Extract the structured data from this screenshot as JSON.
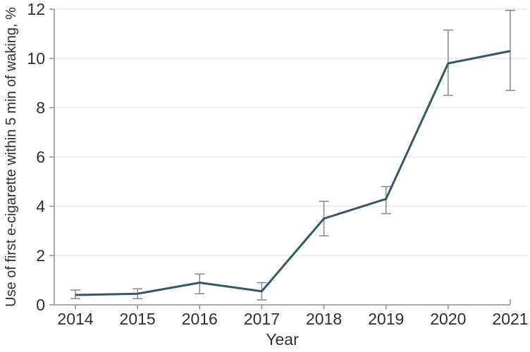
{
  "chart_data": {
    "type": "line",
    "title": "",
    "xlabel": "Year",
    "ylabel": "Use of first e-cigarette within 5 min of waking, %",
    "x": [
      2014,
      2015,
      2016,
      2017,
      2018,
      2019,
      2020,
      2021
    ],
    "x_tick_labels": [
      "2014",
      "2015",
      "2016",
      "2017",
      "2018",
      "2019",
      "2020",
      "2021"
    ],
    "series": [
      {
        "name": "Use of first e-cigarette within 5 min of waking, %",
        "values": [
          0.4,
          0.45,
          0.9,
          0.55,
          3.5,
          4.3,
          9.8,
          10.3
        ],
        "ci_low": [
          0.25,
          0.25,
          0.45,
          0.2,
          2.8,
          3.7,
          8.5,
          8.7
        ],
        "ci_high": [
          0.6,
          0.65,
          1.25,
          0.9,
          4.2,
          4.8,
          11.15,
          11.95
        ]
      }
    ],
    "ylim": [
      0,
      12
    ],
    "yticks": [
      0,
      2,
      4,
      6,
      8,
      10,
      12
    ],
    "grid": true,
    "legend": "none",
    "error_bars": true,
    "colors": {
      "line": "#375763",
      "error_bar": "#8a8f94",
      "axis": "#8f8f8f",
      "gridline": "#e8e8e8",
      "text": "#2f2f2f"
    }
  }
}
